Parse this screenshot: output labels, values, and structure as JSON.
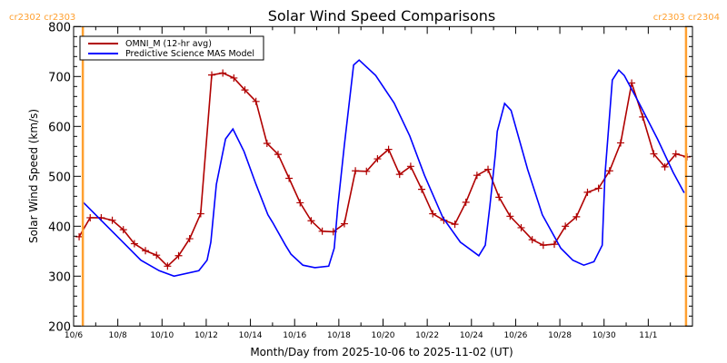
{
  "chart_data": {
    "type": "line",
    "title": "Solar Wind Speed Comparisons",
    "xlabel": "Month/Day from 2025-10-06 to 2025-11-02 (UT)",
    "ylabel": "Solar Wind Speed (km/s)",
    "xlim": [
      "2025-10-06T00:00",
      "2025-11-03T00:00"
    ],
    "ylim": [
      200,
      800
    ],
    "x_tick_labels": [
      "10/6",
      "10/8",
      "10/10",
      "10/12",
      "10/14",
      "10/16",
      "10/18",
      "10/20",
      "10/22",
      "10/24",
      "10/26",
      "10/28",
      "10/30",
      "11/1"
    ],
    "x_tick_dates": [
      "2025-10-06",
      "2025-10-08",
      "2025-10-10",
      "2025-10-12",
      "2025-10-14",
      "2025-10-16",
      "2025-10-18",
      "2025-10-20",
      "2025-10-22",
      "2025-10-24",
      "2025-10-26",
      "2025-10-28",
      "2025-10-30",
      "2025-11-01"
    ],
    "y_ticks": [
      200,
      300,
      400,
      500,
      600,
      700,
      800
    ],
    "grid": false,
    "legend_placement": "top-left",
    "series": [
      {
        "name": "OMNI_M (12-hr avg)",
        "color": "#b00000",
        "markers": "plus",
        "x": [
          "2025-10-06T06:00",
          "2025-10-06T18:00",
          "2025-10-07T06:00",
          "2025-10-07T18:00",
          "2025-10-08T06:00",
          "2025-10-08T18:00",
          "2025-10-09T06:00",
          "2025-10-09T18:00",
          "2025-10-10T06:00",
          "2025-10-10T18:00",
          "2025-10-11T06:00",
          "2025-10-11T18:00",
          "2025-10-12T06:00",
          "2025-10-12T18:00",
          "2025-10-13T06:00",
          "2025-10-13T18:00",
          "2025-10-14T06:00",
          "2025-10-14T18:00",
          "2025-10-15T06:00",
          "2025-10-15T18:00",
          "2025-10-16T06:00",
          "2025-10-16T18:00",
          "2025-10-17T06:00",
          "2025-10-17T18:00",
          "2025-10-18T06:00",
          "2025-10-18T18:00",
          "2025-10-19T06:00",
          "2025-10-19T18:00",
          "2025-10-20T06:00",
          "2025-10-20T18:00",
          "2025-10-21T06:00",
          "2025-10-21T18:00",
          "2025-10-22T06:00",
          "2025-10-22T18:00",
          "2025-10-23T06:00",
          "2025-10-23T18:00",
          "2025-10-24T06:00",
          "2025-10-24T18:00",
          "2025-10-25T06:00",
          "2025-10-25T18:00",
          "2025-10-26T06:00",
          "2025-10-26T18:00",
          "2025-10-27T06:00",
          "2025-10-27T18:00",
          "2025-10-28T06:00",
          "2025-10-28T18:00",
          "2025-10-29T06:00",
          "2025-10-29T18:00",
          "2025-10-30T06:00",
          "2025-10-30T18:00",
          "2025-10-31T06:00",
          "2025-10-31T18:00",
          "2025-11-01T06:00",
          "2025-11-01T18:00",
          "2025-11-02T06:00",
          "2025-11-02T18:00"
        ],
        "values": [
          379,
          417,
          417,
          412,
          393,
          365,
          351,
          342,
          320,
          341,
          375,
          425,
          703,
          707,
          697,
          673,
          650,
          566,
          544,
          496,
          447,
          411,
          390,
          389,
          405,
          511,
          510,
          535,
          554,
          504,
          520,
          474,
          425,
          412,
          404,
          448,
          502,
          514,
          458,
          420,
          397,
          373,
          362,
          364,
          400,
          419,
          468,
          476,
          511,
          567,
          687,
          619,
          545,
          519,
          545,
          539
        ]
      },
      {
        "name": "Predictive Science MAS Model",
        "color": "#0000ff",
        "markers": "none",
        "x": [
          "2025-10-06T10:00",
          "2025-10-09T01:00",
          "2025-10-09T21:00",
          "2025-10-10T13:00",
          "2025-10-11T16:00",
          "2025-10-12T01:00",
          "2025-10-12T05:00",
          "2025-10-12T11:00",
          "2025-10-12T21:00",
          "2025-10-13T05:00",
          "2025-10-13T17:00",
          "2025-10-14T06:00",
          "2025-10-14T19:00",
          "2025-10-15T00:00",
          "2025-10-15T14:00",
          "2025-10-15T20:00",
          "2025-10-16T09:00",
          "2025-10-16T22:00",
          "2025-10-17T13:00",
          "2025-10-17T19:00",
          "2025-10-17T23:00",
          "2025-10-18T06:00",
          "2025-10-18T16:00",
          "2025-10-18T22:00",
          "2025-10-19T16:00",
          "2025-10-20T12:00",
          "2025-10-21T05:00",
          "2025-10-21T21:00",
          "2025-10-22T17:00",
          "2025-10-23T12:00",
          "2025-10-24T08:00",
          "2025-10-24T15:00",
          "2025-10-24T20:00",
          "2025-10-25T02:00",
          "2025-10-25T04:00",
          "2025-10-25T12:00",
          "2025-10-25T19:00",
          "2025-10-26T13:00",
          "2025-10-27T05:00",
          "2025-10-28T01:00",
          "2025-10-28T14:00",
          "2025-10-29T02:00",
          "2025-10-29T13:00",
          "2025-10-29T22:00",
          "2025-10-30T01:00",
          "2025-10-30T09:00",
          "2025-10-30T16:00",
          "2025-10-30T22:00",
          "2025-10-31T14:00",
          "2025-11-01T10:00",
          "2025-11-02T03:00",
          "2025-11-02T15:00"
        ],
        "values": [
          449,
          332,
          311,
          300,
          311,
          332,
          368,
          484,
          575,
          595,
          550,
          484,
          423,
          408,
          362,
          344,
          322,
          317,
          320,
          356,
          441,
          562,
          723,
          733,
          702,
          647,
          581,
          502,
          417,
          368,
          341,
          362,
          441,
          544,
          590,
          646,
          632,
          514,
          423,
          356,
          332,
          322,
          329,
          362,
          502,
          693,
          713,
          702,
          647,
          575,
          508,
          467
        ]
      }
    ],
    "annotations": [
      {
        "label": "cr2302 cr2303",
        "x": "2025-10-06T10:00",
        "color": "#ffa030",
        "type": "vertical-line"
      },
      {
        "label": "cr2303 cr2304",
        "x": "2025-11-02T17:00",
        "color": "#ffa030",
        "type": "vertical-line"
      }
    ]
  }
}
